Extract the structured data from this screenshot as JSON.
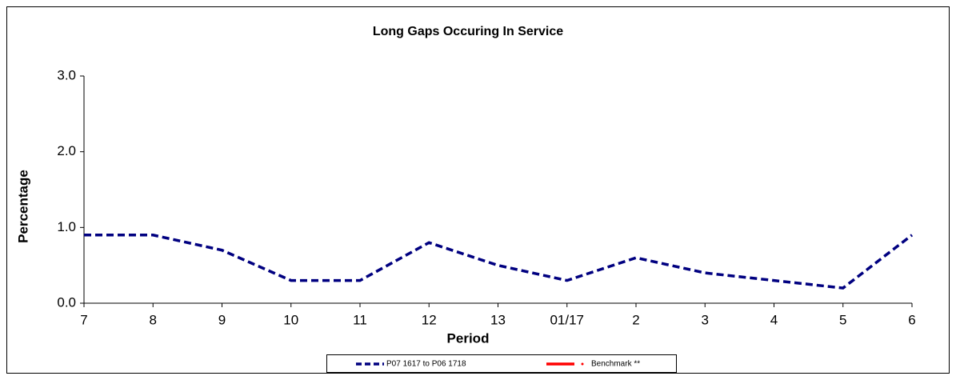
{
  "chart_data": {
    "type": "line",
    "title": "Long Gaps Occuring In Service",
    "x_label": "Period",
    "y_label": "Percentage",
    "categories": [
      "7",
      "8",
      "9",
      "10",
      "11",
      "12",
      "13",
      "01/17",
      "2",
      "3",
      "4",
      "5",
      "6"
    ],
    "series": [
      {
        "name": "P07 1617 to P06 1718",
        "color": "#000080",
        "values": [
          0.9,
          0.9,
          0.7,
          0.3,
          0.3,
          0.8,
          0.5,
          0.3,
          0.6,
          0.4,
          0.3,
          0.2,
          0.9
        ]
      },
      {
        "name": "Benchmark **",
        "color": "#ff0000",
        "values": [
          null,
          null,
          null,
          null,
          null,
          null,
          null,
          null,
          null,
          null,
          null,
          null,
          null
        ]
      }
    ],
    "ylim": [
      0,
      3
    ],
    "yticks": [
      {
        "value": 0,
        "label": "0.0"
      },
      {
        "value": 1,
        "label": "1.0"
      },
      {
        "value": 2,
        "label": "2.0"
      },
      {
        "value": 3,
        "label": "3.0"
      }
    ],
    "grid": false
  }
}
